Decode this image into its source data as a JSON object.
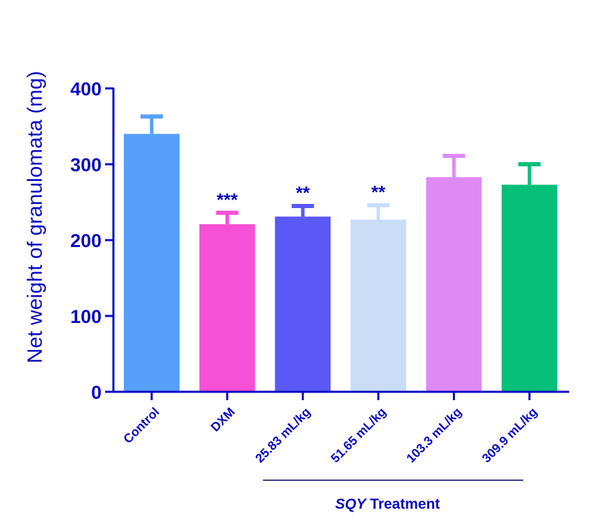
{
  "chart_data": {
    "type": "bar",
    "ylabel": "Net weight of granulomata (mg)",
    "ylim": [
      0,
      400
    ],
    "yticks": [
      0,
      100,
      200,
      300,
      400
    ],
    "categories": [
      "Control",
      "DXM",
      "25.83 mL/kg",
      "51.65 mL/kg",
      "103.3 mL/kg",
      "309.9 mL/kg"
    ],
    "values": [
      340,
      221,
      231,
      227,
      283,
      273
    ],
    "error_upper": [
      363,
      236,
      245,
      246,
      311,
      300
    ],
    "significance": [
      "",
      "***",
      "**",
      "**",
      "",
      ""
    ],
    "colors": [
      "#56a0fb",
      "#f550d6",
      "#5a59f8",
      "#c9ddf7",
      "#de8af6",
      "#06bf78"
    ],
    "group_label": {
      "italic": "SQY",
      "rest": " Treatment",
      "categories": [
        "25.83 mL/kg",
        "51.65 mL/kg",
        "103.3 mL/kg",
        "309.9 mL/kg"
      ]
    },
    "axis_color": "#0a0ac0",
    "grid": false
  }
}
